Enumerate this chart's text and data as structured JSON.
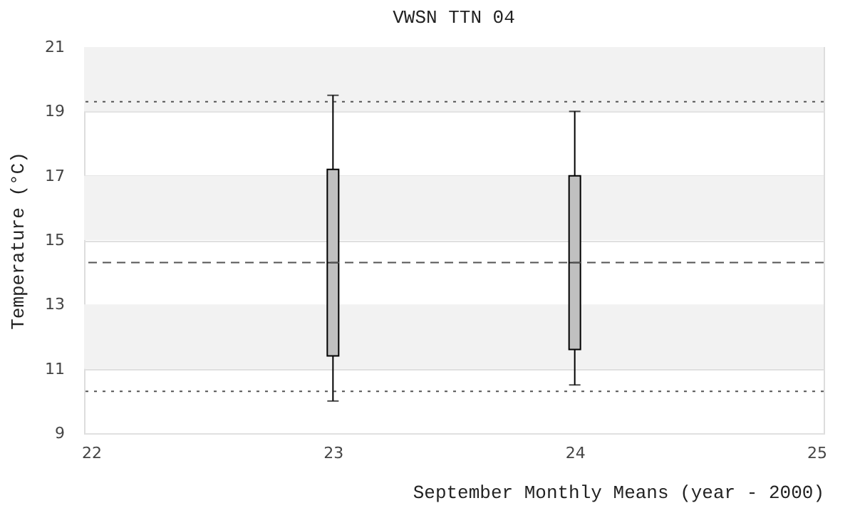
{
  "chart_data": {
    "type": "box",
    "title": "VWSN TTN 04",
    "xlabel": "September Monthly Means (year - 2000)",
    "ylabel": "Temperature (°C)",
    "x": [
      23,
      24
    ],
    "series": [
      {
        "color": "#c0c0c0",
        "boxes": [
          {
            "low": 10.0,
            "q1": 11.4,
            "median": 14.3,
            "q3": 17.2,
            "high": 19.5
          },
          {
            "low": 10.5,
            "q1": 11.6,
            "median": 14.3,
            "q3": 17.0,
            "high": 19.0
          }
        ]
      }
    ],
    "xlim": [
      22,
      25
    ],
    "xticks": [
      22,
      23,
      24,
      25
    ],
    "ylim": [
      9,
      21
    ],
    "yticks": [
      9,
      11,
      13,
      15,
      17,
      19,
      21
    ],
    "grid": "y",
    "ref_lines": [
      {
        "axis": "y",
        "value": 19.3,
        "line_style": "dotted",
        "color": "#555555"
      },
      {
        "axis": "y",
        "value": 14.3,
        "line_style": "dashed",
        "color": "#555555"
      },
      {
        "axis": "y",
        "value": 10.3,
        "line_style": "dotted",
        "color": "#555555"
      }
    ],
    "bands": [
      {
        "axis": "y",
        "from": 19,
        "to": 21,
        "color": "#f2f2f2"
      },
      {
        "axis": "y",
        "from": 15,
        "to": 17,
        "color": "#f2f2f2"
      },
      {
        "axis": "y",
        "from": 11,
        "to": 13,
        "color": "#f2f2f2"
      }
    ]
  }
}
